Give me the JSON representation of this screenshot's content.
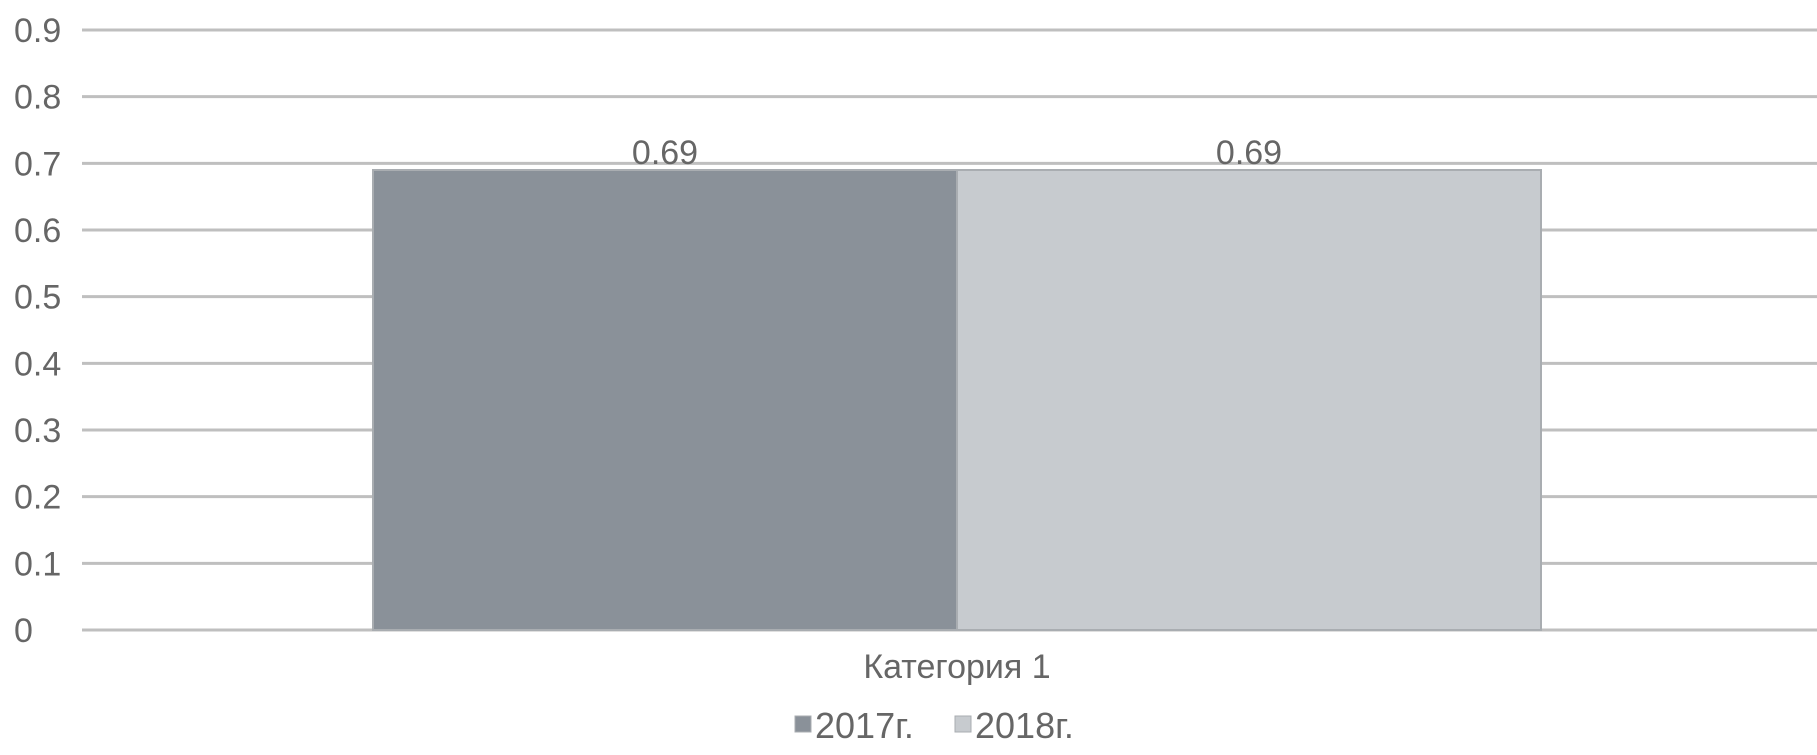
{
  "chart_data": {
    "type": "bar",
    "categories": [
      "Категория 1"
    ],
    "series": [
      {
        "name": "2017г.",
        "values": [
          0.69
        ],
        "color": "#8a9199"
      },
      {
        "name": "2018г.",
        "values": [
          0.69
        ],
        "color": "#c7cbcf"
      }
    ],
    "ylim": [
      0,
      0.9
    ],
    "yticks": [
      "0",
      "0.1",
      "0.2",
      "0.3",
      "0.4",
      "0.5",
      "0.6",
      "0.7",
      "0.8",
      "0.9"
    ],
    "data_labels": [
      "0.69",
      "0.69"
    ],
    "grid": true,
    "legend": "bottom",
    "gridline_color": "#bfbfbf",
    "text_color": "#666666"
  }
}
